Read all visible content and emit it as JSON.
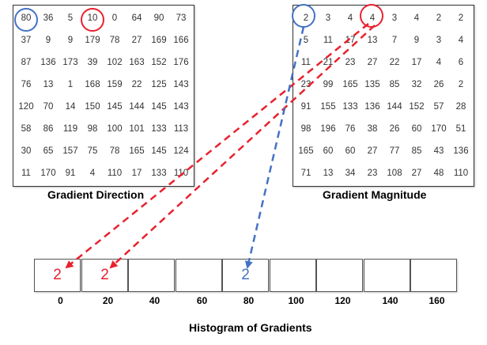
{
  "direction_grid": {
    "title": "Gradient Direction",
    "rows": [
      [
        "80",
        "36",
        "5",
        "10",
        "0",
        "64",
        "90",
        "73"
      ],
      [
        "37",
        "9",
        "9",
        "179",
        "78",
        "27",
        "169",
        "166"
      ],
      [
        "87",
        "136",
        "173",
        "39",
        "102",
        "163",
        "152",
        "176"
      ],
      [
        "76",
        "13",
        "1",
        "168",
        "159",
        "22",
        "125",
        "143"
      ],
      [
        "120",
        "70",
        "14",
        "150",
        "145",
        "144",
        "145",
        "143"
      ],
      [
        "58",
        "86",
        "119",
        "98",
        "100",
        "101",
        "133",
        "113"
      ],
      [
        "30",
        "65",
        "157",
        "75",
        "78",
        "165",
        "145",
        "124"
      ],
      [
        "11",
        "170",
        "91",
        "4",
        "110",
        "17",
        "133",
        "110"
      ]
    ]
  },
  "magnitude_grid": {
    "title": "Gradient Magnitude",
    "rows": [
      [
        "2",
        "3",
        "4",
        "4",
        "3",
        "4",
        "2",
        "2"
      ],
      [
        "5",
        "11",
        "17",
        "13",
        "7",
        "9",
        "3",
        "4"
      ],
      [
        "11",
        "21",
        "23",
        "27",
        "22",
        "17",
        "4",
        "6"
      ],
      [
        "23",
        "99",
        "165",
        "135",
        "85",
        "32",
        "26",
        "2"
      ],
      [
        "91",
        "155",
        "133",
        "136",
        "144",
        "152",
        "57",
        "28"
      ],
      [
        "98",
        "196",
        "76",
        "38",
        "26",
        "60",
        "170",
        "51"
      ],
      [
        "165",
        "60",
        "60",
        "27",
        "77",
        "85",
        "43",
        "136"
      ],
      [
        "71",
        "13",
        "34",
        "23",
        "108",
        "27",
        "48",
        "110"
      ]
    ]
  },
  "histogram": {
    "title": "Histogram of Gradients",
    "bins": [
      {
        "label": "0",
        "value": "2",
        "color": "#e8212e"
      },
      {
        "label": "20",
        "value": "2",
        "color": "#e8212e"
      },
      {
        "label": "40",
        "value": "",
        "color": "#000000"
      },
      {
        "label": "60",
        "value": "",
        "color": "#000000"
      },
      {
        "label": "80",
        "value": "2",
        "color": "#4472c4"
      },
      {
        "label": "100",
        "value": "",
        "color": "#000000"
      },
      {
        "label": "120",
        "value": "",
        "color": "#000000"
      },
      {
        "label": "140",
        "value": "",
        "color": "#000000"
      },
      {
        "label": "160",
        "value": "",
        "color": "#000000"
      }
    ]
  },
  "colors": {
    "red": "#e8212e",
    "blue": "#4472c4"
  }
}
